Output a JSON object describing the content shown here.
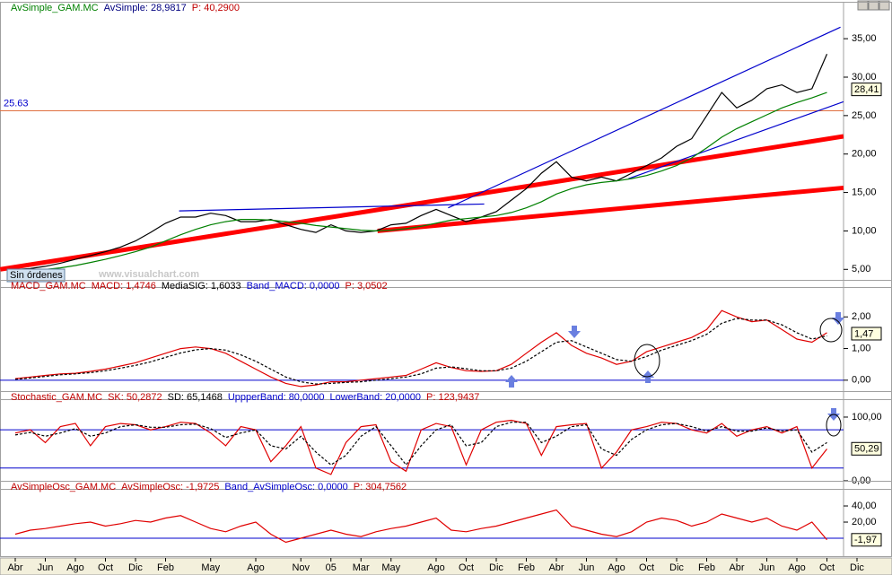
{
  "chart_data": [
    {
      "type": "line",
      "title": "AvSimple_GAM.MC",
      "header": [
        {
          "text": "AvSimple_GAM.MC",
          "color": "#008000"
        },
        {
          "text": "AvSimple: 28,9817",
          "color": "#00007f"
        },
        {
          "text": "P: 40,2900",
          "color": "#c00000"
        }
      ],
      "status": "Sin órdenes",
      "watermark": "www.visualchart.com",
      "ylim": [
        2.7,
        38.4
      ],
      "yticks": [
        {
          "value": 5,
          "label": "5,00"
        },
        {
          "value": 10,
          "label": "10,00"
        },
        {
          "value": 15,
          "label": "15,00"
        },
        {
          "value": 20,
          "label": "20,00"
        },
        {
          "value": 25,
          "label": "25,00"
        },
        {
          "value": 30,
          "label": "30,00"
        },
        {
          "value": 35,
          "label": "35,00"
        }
      ],
      "hlines": [
        {
          "value": 25.63,
          "color": "#e07040",
          "labeled": true
        }
      ],
      "current": {
        "value": 28.41,
        "label": "28,41"
      },
      "trendlines": [
        {
          "color": "#ff0000",
          "x": [
            -1,
            55.1
          ],
          "y": [
            5.0,
            22.3
          ]
        },
        {
          "color": "#ff0000",
          "x": [
            24.1,
            55.1
          ],
          "y": [
            10.0,
            15.6
          ]
        },
        {
          "color": "#0000cc",
          "x": [
            28.8,
            54.9
          ],
          "y": [
            13.0,
            36.5
          ]
        },
        {
          "color": "#0000cc",
          "x": [
            10.9,
            31.2
          ],
          "y": [
            12.6,
            13.5
          ]
        },
        {
          "color": "#0000cc",
          "x": [
            40.8,
            55.1
          ],
          "y": [
            16.8,
            26.8
          ]
        }
      ],
      "series": [
        {
          "color": "#000000",
          "values": [
            5.0,
            5.1,
            5.4,
            5.8,
            6.3,
            6.8,
            7.3,
            7.9,
            8.7,
            9.8,
            11.0,
            11.8,
            11.8,
            12.3,
            12.0,
            11.2,
            11.2,
            11.5,
            10.8,
            10.2,
            9.8,
            10.8,
            10.0,
            9.8,
            10.0,
            10.8,
            11.0,
            12.0,
            12.8,
            12.0,
            11.2,
            11.8,
            12.5,
            14.0,
            15.5,
            17.5,
            19.0,
            17.0,
            16.5,
            17.0,
            16.5,
            17.5,
            18.5,
            19.5,
            21.0,
            22.0,
            25.0,
            28.0,
            26.0,
            27.0,
            28.5,
            29.0,
            28.0,
            28.5,
            33.0,
            null,
            null
          ]
        },
        {
          "color": "#008000",
          "values": [
            4.8,
            4.9,
            5.0,
            5.2,
            5.5,
            5.9,
            6.3,
            6.8,
            7.3,
            7.9,
            8.7,
            9.5,
            10.2,
            10.8,
            11.2,
            11.5,
            11.5,
            11.4,
            11.2,
            11.0,
            10.7,
            10.5,
            10.3,
            10.1,
            10.0,
            10.1,
            10.3,
            10.6,
            11.0,
            11.4,
            11.6,
            11.8,
            12.0,
            12.4,
            13.0,
            13.8,
            14.8,
            15.5,
            16.0,
            16.3,
            16.5,
            16.8,
            17.2,
            17.8,
            18.5,
            19.5,
            20.8,
            22.2,
            23.3,
            24.2,
            25.1,
            26.0,
            26.7,
            27.3,
            28.0,
            null,
            null
          ]
        }
      ]
    },
    {
      "type": "line",
      "title": "MACD_GAM.MC",
      "header": [
        {
          "text": "MACD_GAM.MC",
          "color": "#c00000"
        },
        {
          "text": "MACD: 1,4746",
          "color": "#c00000"
        },
        {
          "text": "MediaSIG: 1,6033",
          "color": "#000000"
        },
        {
          "text": "Band_MACD: 0,0000",
          "color": "#0000cc"
        },
        {
          "text": "P: 3,0502",
          "color": "#c00000"
        }
      ],
      "ylim": [
        -0.6,
        2.83
      ],
      "yticks": [
        {
          "value": 0,
          "label": "0,00"
        },
        {
          "value": 1,
          "label": "1,00"
        },
        {
          "value": 2,
          "label": "2,00"
        }
      ],
      "hlines": [
        {
          "value": 0,
          "color": "#0000cc"
        }
      ],
      "current": {
        "value": 1.47,
        "label": "1,47"
      },
      "series": [
        {
          "color": "#e00000",
          "values": [
            0.05,
            0.1,
            0.15,
            0.2,
            0.22,
            0.28,
            0.35,
            0.45,
            0.55,
            0.7,
            0.85,
            1.0,
            1.05,
            1.0,
            0.85,
            0.6,
            0.35,
            0.1,
            -0.1,
            -0.2,
            -0.15,
            -0.05,
            -0.05,
            0.0,
            0.05,
            0.1,
            0.15,
            0.35,
            0.55,
            0.4,
            0.3,
            0.28,
            0.3,
            0.5,
            0.85,
            1.2,
            1.5,
            1.1,
            0.85,
            0.7,
            0.5,
            0.6,
            0.9,
            1.05,
            1.2,
            1.35,
            1.6,
            2.2,
            2.0,
            1.85,
            1.9,
            1.6,
            1.3,
            1.2,
            1.5,
            null,
            null
          ]
        },
        {
          "color": "#000000",
          "dashed": true,
          "values": [
            0.03,
            0.07,
            0.12,
            0.17,
            0.2,
            0.24,
            0.3,
            0.38,
            0.47,
            0.58,
            0.72,
            0.86,
            0.96,
            1.0,
            0.95,
            0.8,
            0.6,
            0.35,
            0.1,
            -0.05,
            -0.12,
            -0.1,
            -0.07,
            -0.05,
            0.0,
            0.05,
            0.1,
            0.2,
            0.38,
            0.42,
            0.36,
            0.3,
            0.3,
            0.38,
            0.6,
            0.9,
            1.2,
            1.25,
            1.05,
            0.85,
            0.65,
            0.6,
            0.75,
            0.95,
            1.1,
            1.25,
            1.45,
            1.8,
            1.95,
            1.9,
            1.9,
            1.75,
            1.5,
            1.3,
            1.4,
            null,
            null
          ]
        }
      ]
    },
    {
      "type": "line",
      "title": "Stochastic_GAM.MC",
      "header": [
        {
          "text": "Stochastic_GAM.MC",
          "color": "#c00000"
        },
        {
          "text": "SK: 50,2872",
          "color": "#c00000"
        },
        {
          "text": "SD: 65,1468",
          "color": "#000000"
        },
        {
          "text": "UppperBand: 80,0000",
          "color": "#0000cc"
        },
        {
          "text": "LowerBand: 20,0000",
          "color": "#0000cc"
        },
        {
          "text": "P: 123,9437",
          "color": "#c00000"
        }
      ],
      "ylim": [
        -12.7,
        123.9
      ],
      "yticks": [
        {
          "value": 0,
          "label": "0,00"
        },
        {
          "value": 100,
          "label": "100,00"
        }
      ],
      "hlines": [
        {
          "value": 80,
          "color": "#0000cc"
        },
        {
          "value": 20,
          "color": "#0000cc"
        }
      ],
      "current": {
        "value": 50.29,
        "label": "50,29"
      },
      "series": [
        {
          "color": "#e00000",
          "values": [
            75,
            80,
            60,
            85,
            90,
            55,
            85,
            90,
            88,
            80,
            85,
            92,
            90,
            75,
            55,
            85,
            80,
            30,
            55,
            85,
            20,
            10,
            60,
            85,
            88,
            30,
            15,
            80,
            90,
            85,
            25,
            80,
            92,
            95,
            90,
            40,
            85,
            88,
            90,
            20,
            45,
            80,
            85,
            92,
            90,
            80,
            75,
            90,
            70,
            80,
            85,
            75,
            85,
            20,
            50,
            null,
            null
          ]
        },
        {
          "color": "#000000",
          "dashed": true,
          "values": [
            72,
            76,
            70,
            75,
            82,
            70,
            75,
            85,
            88,
            84,
            84,
            88,
            89,
            82,
            68,
            75,
            80,
            55,
            50,
            70,
            45,
            25,
            40,
            70,
            85,
            55,
            25,
            55,
            80,
            88,
            55,
            60,
            85,
            92,
            92,
            60,
            70,
            85,
            88,
            50,
            40,
            65,
            80,
            88,
            90,
            85,
            78,
            85,
            78,
            78,
            83,
            78,
            80,
            45,
            60,
            null,
            null
          ]
        }
      ]
    },
    {
      "type": "line",
      "title": "AvSimpleOsc_GAM.MC",
      "header": [
        {
          "text": "AvSimpleOsc_GAM.MC",
          "color": "#c00000"
        },
        {
          "text": "AvSimpleOsc: -1,9725",
          "color": "#c00000"
        },
        {
          "text": "Band_AvSimpleOsc: 0,0000",
          "color": "#0000cc"
        },
        {
          "text": "P: 304,7562",
          "color": "#c00000"
        }
      ],
      "ylim": [
        -22.2,
        57.8
      ],
      "yticks": [
        {
          "value": 20,
          "label": "20,00"
        },
        {
          "value": 40,
          "label": "40,00"
        }
      ],
      "hlines": [
        {
          "value": 0,
          "color": "#0000cc"
        }
      ],
      "current": {
        "value": -1.97,
        "label": "-1,97"
      },
      "categories": [
        "Abr",
        null,
        "Jun",
        null,
        "Ago",
        null,
        "Oct",
        null,
        "Dic",
        null,
        "Feb",
        null,
        null,
        "May",
        null,
        null,
        "Ago",
        null,
        null,
        "Nov",
        null,
        "05",
        null,
        "Mar",
        null,
        "May",
        null,
        null,
        "Ago",
        null,
        "Oct",
        null,
        "Dic",
        null,
        "Feb",
        null,
        "Abr",
        null,
        "Jun",
        null,
        "Ago",
        null,
        "Oct",
        null,
        "Dic",
        null,
        "Feb",
        null,
        "Abr",
        null,
        "Jun",
        null,
        "Ago",
        null,
        "Oct",
        null,
        "Dic"
      ],
      "series": [
        {
          "color": "#e00000",
          "values": [
            5,
            10,
            12,
            15,
            18,
            20,
            15,
            18,
            22,
            20,
            25,
            28,
            20,
            12,
            8,
            15,
            20,
            5,
            -5,
            0,
            5,
            10,
            5,
            2,
            8,
            12,
            15,
            20,
            25,
            10,
            8,
            12,
            15,
            20,
            25,
            30,
            35,
            15,
            10,
            5,
            2,
            8,
            20,
            25,
            22,
            15,
            20,
            30,
            25,
            20,
            25,
            15,
            10,
            20,
            -2,
            null,
            null
          ]
        }
      ]
    }
  ]
}
